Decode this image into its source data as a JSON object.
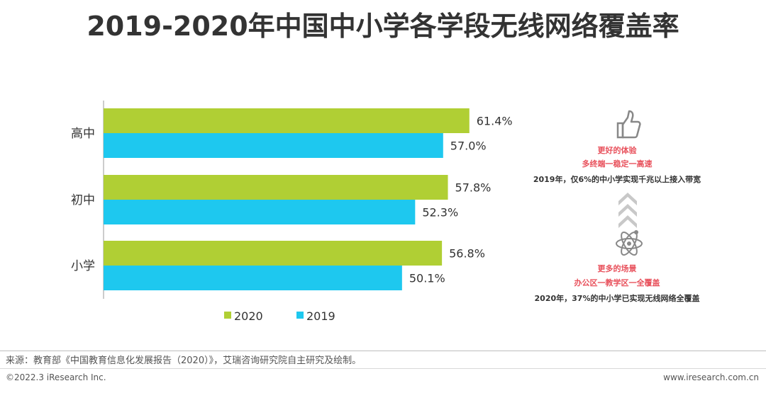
{
  "chart_data": {
    "type": "bar",
    "orientation": "horizontal",
    "title": "2019-2020年中国中小学各学段无线网络覆盖率",
    "categories": [
      "高中",
      "初中",
      "小学"
    ],
    "series": [
      {
        "name": "2020",
        "color": "#b0cf34",
        "values": [
          61.4,
          57.8,
          56.8
        ],
        "labels": [
          "61.4%",
          "57.8%",
          "56.8%"
        ]
      },
      {
        "name": "2019",
        "color": "#1ec8ef",
        "values": [
          57.0,
          52.3,
          50.1
        ],
        "labels": [
          "57.0%",
          "52.3%",
          "50.1%"
        ]
      }
    ],
    "xlim": [
      0,
      100
    ],
    "legend_position": "bottom-center",
    "grid": false
  },
  "side_panel": {
    "top_title": "更好的体验",
    "top_sub": "多终端一稳定一高速",
    "top_note": "2019年，仅6%的中小学实现千兆以上接入带宽",
    "bottom_title": "更多的场景",
    "bottom_sub": "办公区一教学区一全覆盖",
    "bottom_note": "2020年，37%的中小学已实现无线网络全覆盖",
    "top_icon": "thumbs-up-icon",
    "bottom_icon": "atom-icon"
  },
  "footer": {
    "source": "来源：教育部《中国教育信息化发展报告（2020）》，艾瑞咨询研究院自主研究及绘制。",
    "copyright": "©2022.3 iResearch Inc.",
    "website": "www.iresearch.com.cn"
  }
}
